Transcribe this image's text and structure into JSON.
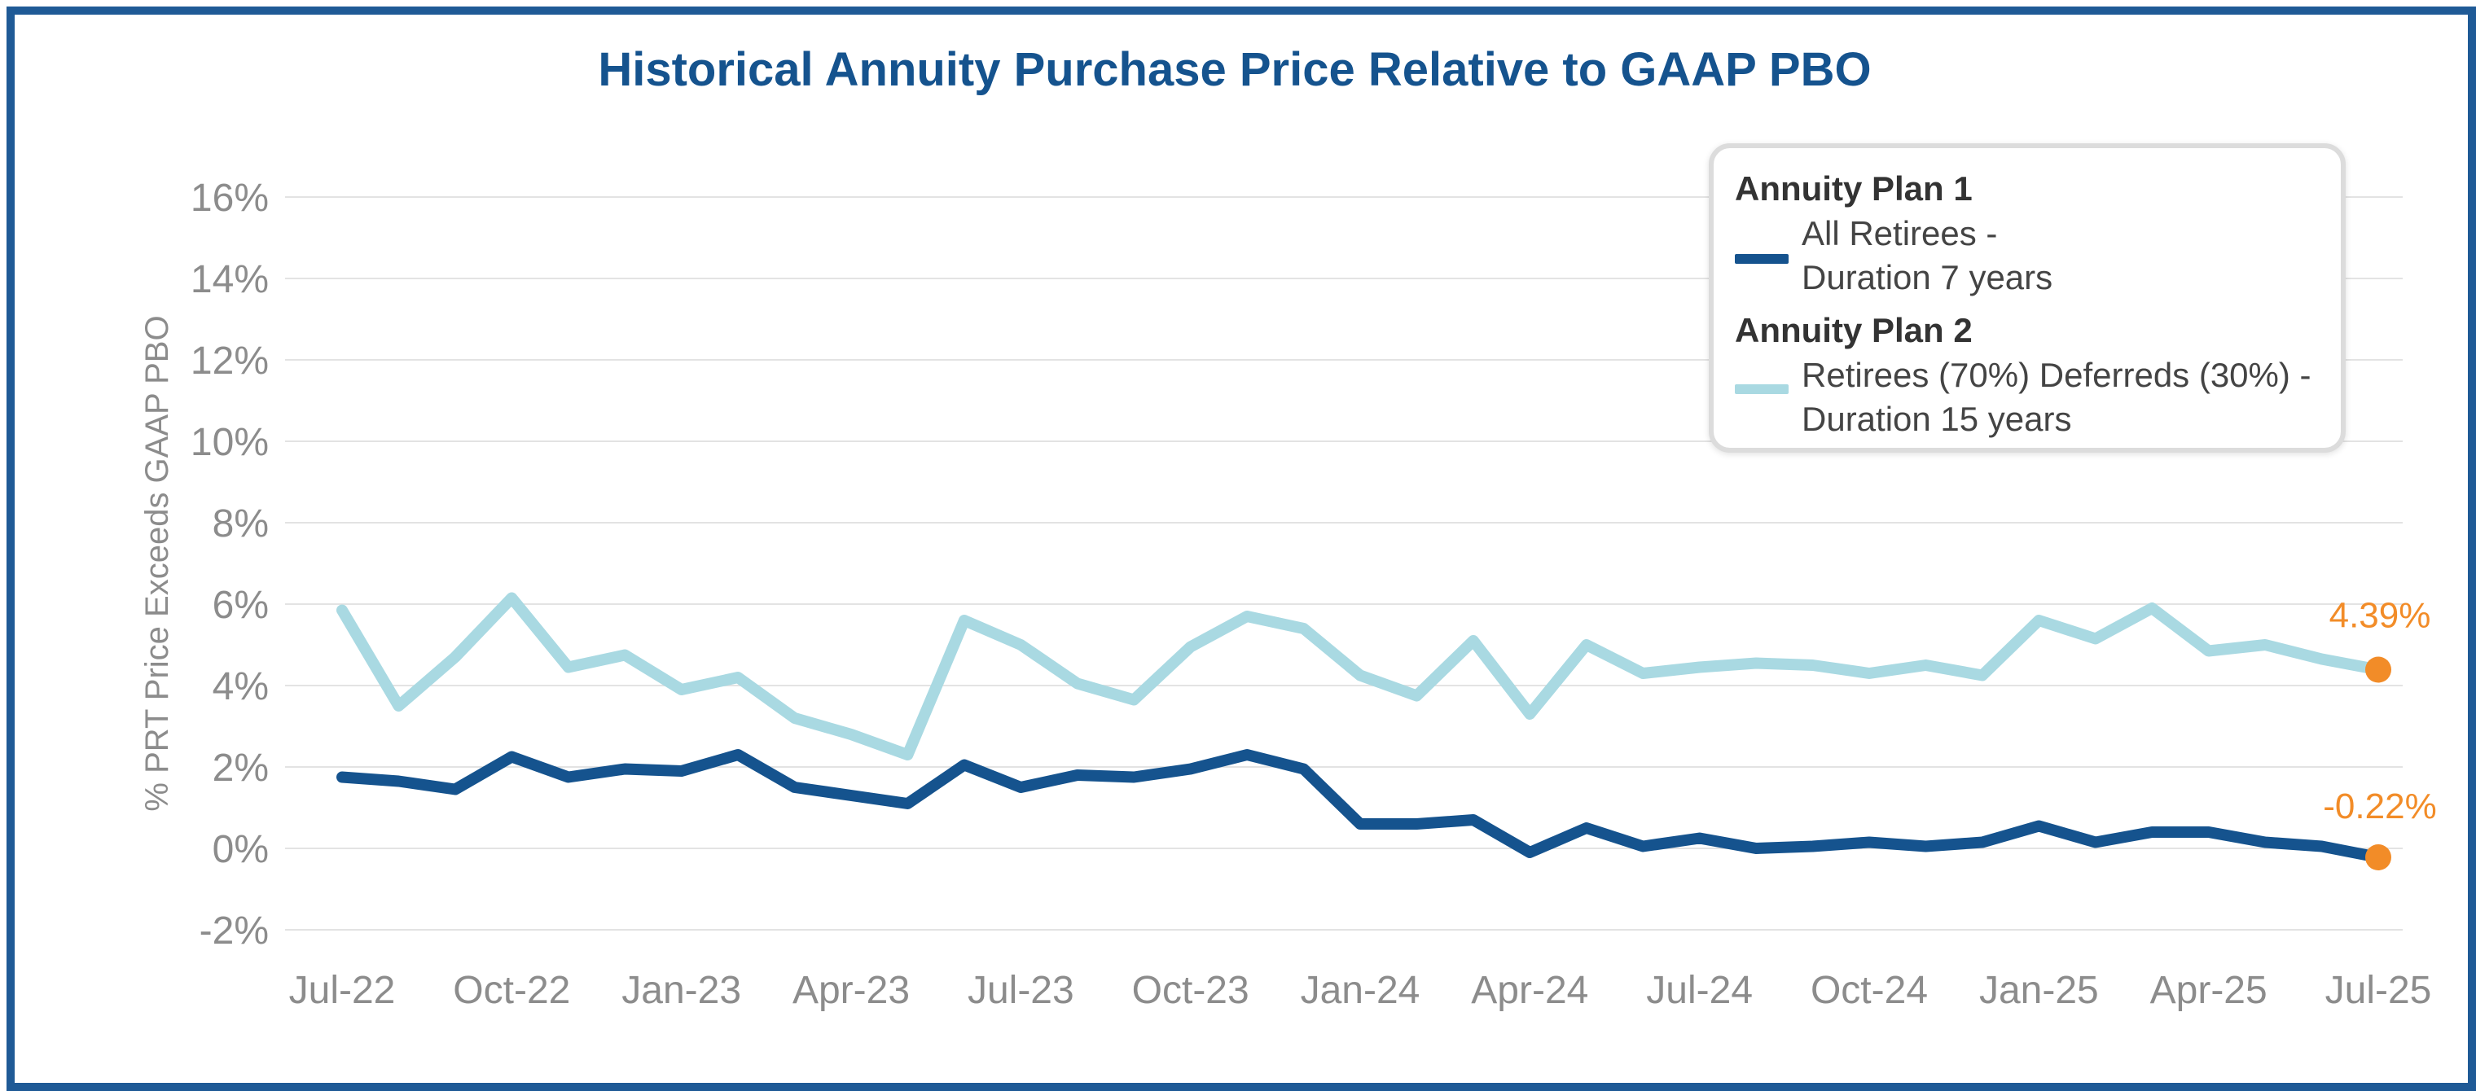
{
  "chart_data": {
    "type": "line",
    "title": "Historical Annuity Purchase Price Relative to GAAP PBO",
    "xlabel": "",
    "ylabel": "% PRT Price Exceeds GAAP PBO",
    "x_tick_labels": [
      "Jul-22",
      "Oct-22",
      "Jan-23",
      "Apr-23",
      "Jul-23",
      "Oct-23",
      "Jan-24",
      "Apr-24",
      "Jul-24",
      "Oct-24",
      "Jan-25",
      "Apr-25",
      "Jul-25"
    ],
    "y_tick_labels": [
      "16%",
      "14%",
      "12%",
      "10%",
      "8%",
      "6%",
      "4%",
      "2%",
      "0%",
      "-2%"
    ],
    "ylim": [
      -2,
      16
    ],
    "ytick_step": 2,
    "grid": "horizontal",
    "n_points": 37,
    "series": [
      {
        "name": "Annuity Plan 2",
        "legend_header": "Annuity Plan 2",
        "legend_lines": [
          "Retirees (70%) Deferreds (30%) -",
          "Duration 15 years"
        ],
        "color": "#a9d9e2",
        "values": [
          5.85,
          3.5,
          4.7,
          6.15,
          4.45,
          4.75,
          3.9,
          4.2,
          3.2,
          2.8,
          2.3,
          5.6,
          5.0,
          4.05,
          3.65,
          4.95,
          5.7,
          5.4,
          4.25,
          3.75,
          5.1,
          3.3,
          5.0,
          4.3,
          4.45,
          4.55,
          4.5,
          4.3,
          4.5,
          4.25,
          5.6,
          5.15,
          5.9,
          4.85,
          5.0,
          4.65,
          4.39
        ],
        "end_label": "4.39%"
      },
      {
        "name": "Annuity Plan 1",
        "legend_header": "Annuity Plan 1",
        "legend_lines": [
          "All Retirees -",
          "Duration 7 years"
        ],
        "color": "#15538e",
        "values": [
          1.75,
          1.65,
          1.45,
          2.25,
          1.75,
          1.95,
          1.9,
          2.3,
          1.5,
          1.3,
          1.1,
          2.05,
          1.5,
          1.8,
          1.75,
          1.95,
          2.3,
          1.95,
          0.6,
          0.6,
          0.7,
          -0.1,
          0.5,
          0.05,
          0.25,
          0.0,
          0.05,
          0.15,
          0.05,
          0.15,
          0.55,
          0.15,
          0.4,
          0.4,
          0.15,
          0.05,
          -0.22
        ],
        "end_label": "-0.22%"
      }
    ],
    "annotation_color": "#f28c28"
  }
}
